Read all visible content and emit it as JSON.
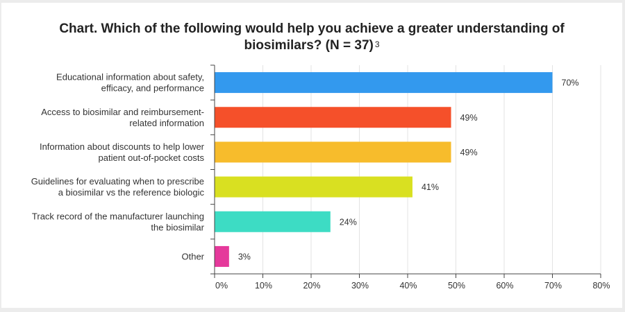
{
  "chart_data": {
    "type": "bar",
    "orientation": "horizontal",
    "title_line1": "Chart. Which of the following would help you achieve a greater understanding of",
    "title_line2": "biosimilars? (N = 37)",
    "title_superscript": "3",
    "categories": [
      [
        "Educational information about safety,",
        "efficacy, and performance"
      ],
      [
        "Access to biosimilar and reimbursement-",
        "related information"
      ],
      [
        "Information about discounts to help lower",
        "patient out-of-pocket costs"
      ],
      [
        "Guidelines for evaluating when to prescribe",
        "a biosimilar vs the reference biologic"
      ],
      [
        "Track record of the manufacturer launching",
        "the biosimilar"
      ],
      [
        "Other"
      ]
    ],
    "values": [
      70,
      49,
      49,
      41,
      24,
      3
    ],
    "value_labels": [
      "70%",
      "49%",
      "49%",
      "41%",
      "24%",
      "3%"
    ],
    "colors": [
      "#3399ee",
      "#f5502a",
      "#f7bc2c",
      "#d9e021",
      "#3ddcc4",
      "#e5399b"
    ],
    "xlim": [
      0,
      80
    ],
    "x_ticks": [
      0,
      10,
      20,
      30,
      40,
      50,
      60,
      70,
      80
    ],
    "x_tick_labels": [
      "0%",
      "10%",
      "20%",
      "30%",
      "40%",
      "50%",
      "60%",
      "70%",
      "80%"
    ],
    "grid": "vertical"
  }
}
